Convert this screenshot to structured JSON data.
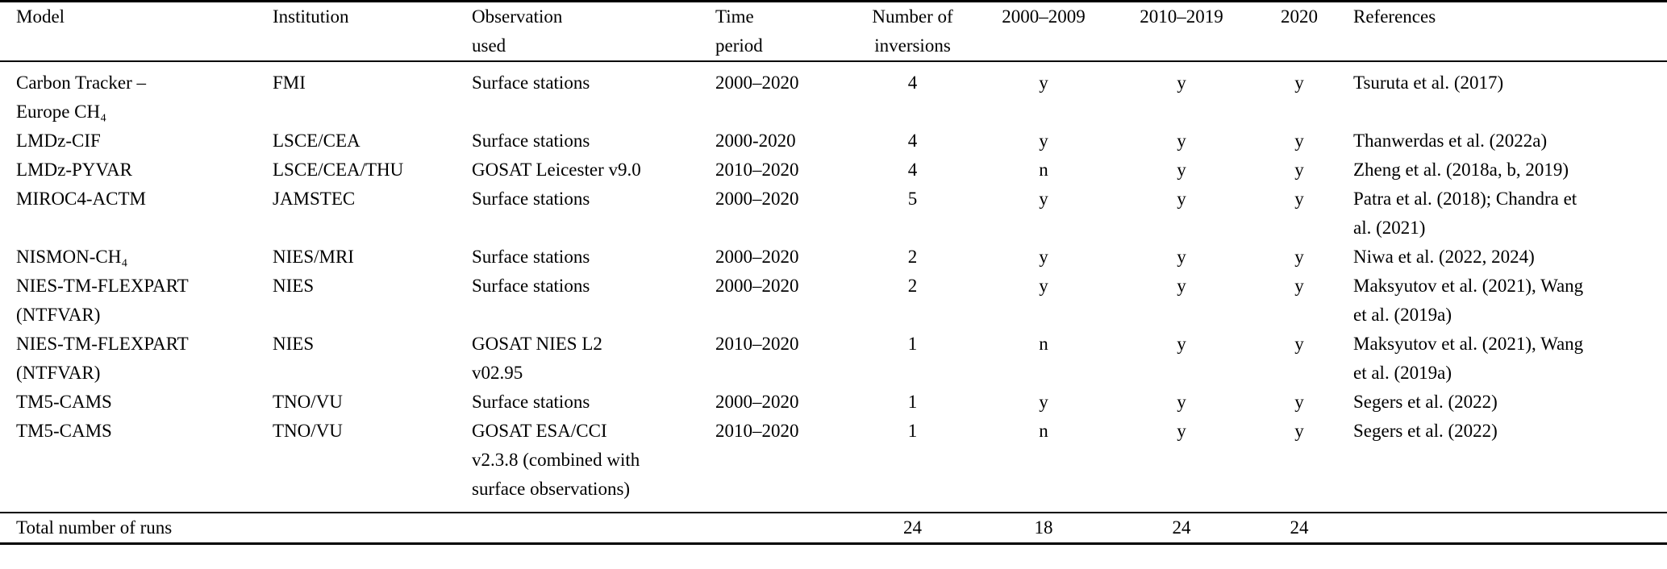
{
  "table": {
    "columns": [
      {
        "label": "Model"
      },
      {
        "label": "Institution"
      },
      {
        "label": "Observation\nused"
      },
      {
        "label": "Time\nperiod"
      },
      {
        "label": "Number of\ninversions"
      },
      {
        "label": "2000–2009"
      },
      {
        "label": "2010–2019"
      },
      {
        "label": "2020"
      },
      {
        "label": "References"
      }
    ],
    "rows": [
      {
        "model": "Carbon Tracker –\nEurope CH₄",
        "institution": "FMI",
        "observation": "Surface stations",
        "time_period": "2000–2020",
        "inversions": "4",
        "p2000_2009": "y",
        "p2010_2019": "y",
        "p2020": "y",
        "references": "Tsuruta et al. (2017)"
      },
      {
        "model": "LMDz-CIF",
        "institution": "LSCE/CEA",
        "observation": "Surface stations",
        "time_period": "2000-2020",
        "inversions": "4",
        "p2000_2009": "y",
        "p2010_2019": "y",
        "p2020": "y",
        "references": "Thanwerdas et al. (2022a)"
      },
      {
        "model": "LMDz-PYVAR",
        "institution": "LSCE/CEA/THU",
        "observation": "GOSAT Leicester v9.0",
        "time_period": "2010–2020",
        "inversions": "4",
        "p2000_2009": "n",
        "p2010_2019": "y",
        "p2020": "y",
        "references": "Zheng et al. (2018a, b, 2019)"
      },
      {
        "model": "MIROC4-ACTM",
        "institution": "JAMSTEC",
        "observation": "Surface stations",
        "time_period": "2000–2020",
        "inversions": "5",
        "p2000_2009": "y",
        "p2010_2019": "y",
        "p2020": "y",
        "references": "Patra et al. (2018); Chandra et\nal. (2021)"
      },
      {
        "model": "NISMON-CH₄",
        "institution": "NIES/MRI",
        "observation": "Surface stations",
        "time_period": "2000–2020",
        "inversions": "2",
        "p2000_2009": "y",
        "p2010_2019": "y",
        "p2020": "y",
        "references": "Niwa et al. (2022, 2024)"
      },
      {
        "model": "NIES-TM-FLEXPART\n(NTFVAR)",
        "institution": "NIES",
        "observation": "Surface stations",
        "time_period": "2000–2020",
        "inversions": "2",
        "p2000_2009": "y",
        "p2010_2019": "y",
        "p2020": "y",
        "references": "Maksyutov et al. (2021), Wang\net al. (2019a)"
      },
      {
        "model": "NIES-TM-FLEXPART\n(NTFVAR)",
        "institution": "NIES",
        "observation": "GOSAT NIES L2\nv02.95",
        "time_period": "2010–2020",
        "inversions": "1",
        "p2000_2009": "n",
        "p2010_2019": "y",
        "p2020": "y",
        "references": "Maksyutov et al. (2021), Wang\net al. (2019a)"
      },
      {
        "model": "TM5-CAMS",
        "institution": "TNO/VU",
        "observation": "Surface stations",
        "time_period": "2000–2020",
        "inversions": "1",
        "p2000_2009": "y",
        "p2010_2019": "y",
        "p2020": "y",
        "references": "Segers et al. (2022)"
      },
      {
        "model": "TM5-CAMS",
        "institution": "TNO/VU",
        "observation": "GOSAT ESA/CCI\nv2.3.8 (combined with\nsurface observations)",
        "time_period": "2010–2020",
        "inversions": "1",
        "p2000_2009": "n",
        "p2010_2019": "y",
        "p2020": "y",
        "references": "Segers et al. (2022)"
      }
    ],
    "footer": {
      "label": "Total number of runs",
      "inversions": "24",
      "p2000_2009": "18",
      "p2010_2019": "24",
      "p2020": "24"
    }
  }
}
